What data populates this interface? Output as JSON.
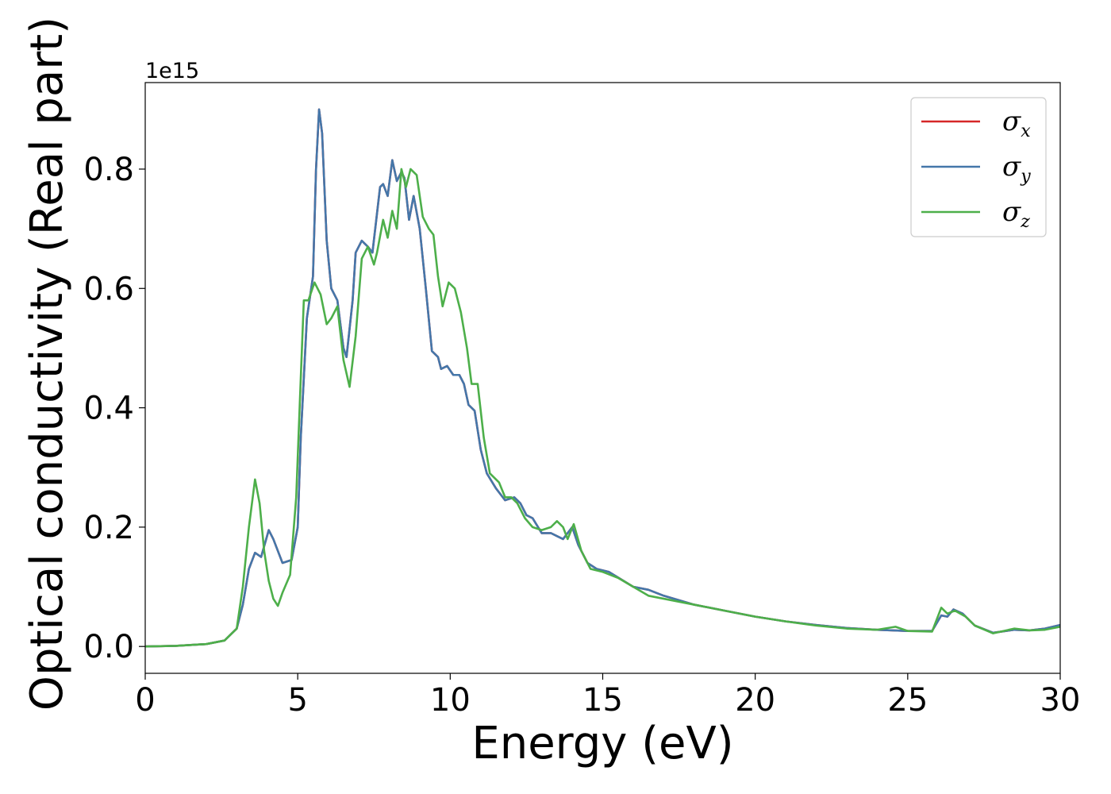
{
  "chart_data": {
    "type": "line",
    "xlabel": "Energy (eV)",
    "ylabel": "Optical conductivity (Real part)",
    "y_offset_label": "1e15",
    "xlim": [
      0,
      30
    ],
    "ylim": [
      -0.045,
      0.945
    ],
    "x_ticks": [
      0,
      5,
      10,
      15,
      20,
      25,
      30
    ],
    "x_tick_labels": [
      "0",
      "5",
      "10",
      "15",
      "20",
      "25",
      "30"
    ],
    "y_ticks": [
      0.0,
      0.2,
      0.4,
      0.6,
      0.8
    ],
    "y_tick_labels": [
      "0.0",
      "0.2",
      "0.4",
      "0.6",
      "0.8"
    ],
    "grid": false,
    "legend_position": "top-right",
    "series": [
      {
        "name": "σx",
        "legend_base": "σ",
        "legend_sub": "x",
        "color": "#d62728",
        "points": [
          [
            0,
            0
          ],
          [
            1,
            0.001
          ],
          [
            2,
            0.004
          ],
          [
            2.6,
            0.01
          ],
          [
            3,
            0.03
          ],
          [
            3.2,
            0.07
          ],
          [
            3.4,
            0.13
          ],
          [
            3.6,
            0.157
          ],
          [
            3.8,
            0.15
          ],
          [
            4.05,
            0.195
          ],
          [
            4.2,
            0.18
          ],
          [
            4.5,
            0.14
          ],
          [
            4.8,
            0.145
          ],
          [
            5.0,
            0.2
          ],
          [
            5.1,
            0.35
          ],
          [
            5.3,
            0.55
          ],
          [
            5.5,
            0.62
          ],
          [
            5.6,
            0.8
          ],
          [
            5.7,
            0.9
          ],
          [
            5.8,
            0.86
          ],
          [
            5.95,
            0.68
          ],
          [
            6.1,
            0.6
          ],
          [
            6.3,
            0.58
          ],
          [
            6.5,
            0.5
          ],
          [
            6.6,
            0.485
          ],
          [
            6.8,
            0.58
          ],
          [
            6.9,
            0.66
          ],
          [
            7.1,
            0.68
          ],
          [
            7.3,
            0.67
          ],
          [
            7.45,
            0.66
          ],
          [
            7.7,
            0.77
          ],
          [
            7.8,
            0.775
          ],
          [
            7.95,
            0.755
          ],
          [
            8.1,
            0.815
          ],
          [
            8.25,
            0.78
          ],
          [
            8.4,
            0.795
          ],
          [
            8.5,
            0.785
          ],
          [
            8.65,
            0.715
          ],
          [
            8.8,
            0.755
          ],
          [
            9.0,
            0.7
          ],
          [
            9.2,
            0.6
          ],
          [
            9.4,
            0.495
          ],
          [
            9.6,
            0.485
          ],
          [
            9.7,
            0.465
          ],
          [
            9.9,
            0.47
          ],
          [
            10.1,
            0.455
          ],
          [
            10.3,
            0.455
          ],
          [
            10.45,
            0.44
          ],
          [
            10.6,
            0.405
          ],
          [
            10.8,
            0.395
          ],
          [
            11.0,
            0.33
          ],
          [
            11.2,
            0.29
          ],
          [
            11.5,
            0.265
          ],
          [
            11.8,
            0.245
          ],
          [
            12.1,
            0.25
          ],
          [
            12.3,
            0.24
          ],
          [
            12.5,
            0.22
          ],
          [
            12.7,
            0.215
          ],
          [
            13.0,
            0.19
          ],
          [
            13.3,
            0.19
          ],
          [
            13.5,
            0.185
          ],
          [
            13.7,
            0.18
          ],
          [
            13.85,
            0.19
          ],
          [
            14.0,
            0.2
          ],
          [
            14.2,
            0.17
          ],
          [
            14.5,
            0.14
          ],
          [
            14.8,
            0.13
          ],
          [
            15.2,
            0.125
          ],
          [
            16,
            0.1
          ],
          [
            16.5,
            0.095
          ],
          [
            17,
            0.085
          ],
          [
            18,
            0.07
          ],
          [
            19,
            0.06
          ],
          [
            20,
            0.05
          ],
          [
            21,
            0.042
          ],
          [
            22,
            0.036
          ],
          [
            23,
            0.031
          ],
          [
            24,
            0.028
          ],
          [
            25,
            0.026
          ],
          [
            25.8,
            0.026
          ],
          [
            26.1,
            0.052
          ],
          [
            26.3,
            0.05
          ],
          [
            26.5,
            0.062
          ],
          [
            26.8,
            0.055
          ],
          [
            27.2,
            0.035
          ],
          [
            27.8,
            0.023
          ],
          [
            28.5,
            0.028
          ],
          [
            29,
            0.027
          ],
          [
            29.5,
            0.03
          ],
          [
            30,
            0.036
          ]
        ]
      },
      {
        "name": "σy",
        "legend_base": "σ",
        "legend_sub": "y",
        "color": "#4477aa",
        "points": [
          [
            0,
            0
          ],
          [
            1,
            0.001
          ],
          [
            2,
            0.004
          ],
          [
            2.6,
            0.01
          ],
          [
            3,
            0.03
          ],
          [
            3.2,
            0.07
          ],
          [
            3.4,
            0.13
          ],
          [
            3.6,
            0.157
          ],
          [
            3.8,
            0.15
          ],
          [
            4.05,
            0.195
          ],
          [
            4.2,
            0.18
          ],
          [
            4.5,
            0.14
          ],
          [
            4.8,
            0.145
          ],
          [
            5.0,
            0.2
          ],
          [
            5.1,
            0.35
          ],
          [
            5.3,
            0.55
          ],
          [
            5.5,
            0.62
          ],
          [
            5.6,
            0.8
          ],
          [
            5.7,
            0.9
          ],
          [
            5.8,
            0.86
          ],
          [
            5.95,
            0.68
          ],
          [
            6.1,
            0.6
          ],
          [
            6.3,
            0.58
          ],
          [
            6.5,
            0.5
          ],
          [
            6.6,
            0.485
          ],
          [
            6.8,
            0.58
          ],
          [
            6.9,
            0.66
          ],
          [
            7.1,
            0.68
          ],
          [
            7.3,
            0.67
          ],
          [
            7.45,
            0.66
          ],
          [
            7.7,
            0.77
          ],
          [
            7.8,
            0.775
          ],
          [
            7.95,
            0.755
          ],
          [
            8.1,
            0.815
          ],
          [
            8.25,
            0.78
          ],
          [
            8.4,
            0.795
          ],
          [
            8.5,
            0.785
          ],
          [
            8.65,
            0.715
          ],
          [
            8.8,
            0.755
          ],
          [
            9.0,
            0.7
          ],
          [
            9.2,
            0.6
          ],
          [
            9.4,
            0.495
          ],
          [
            9.6,
            0.485
          ],
          [
            9.7,
            0.465
          ],
          [
            9.9,
            0.47
          ],
          [
            10.1,
            0.455
          ],
          [
            10.3,
            0.455
          ],
          [
            10.45,
            0.44
          ],
          [
            10.6,
            0.405
          ],
          [
            10.8,
            0.395
          ],
          [
            11.0,
            0.33
          ],
          [
            11.2,
            0.29
          ],
          [
            11.5,
            0.265
          ],
          [
            11.8,
            0.245
          ],
          [
            12.1,
            0.25
          ],
          [
            12.3,
            0.24
          ],
          [
            12.5,
            0.22
          ],
          [
            12.7,
            0.215
          ],
          [
            13.0,
            0.19
          ],
          [
            13.3,
            0.19
          ],
          [
            13.5,
            0.185
          ],
          [
            13.7,
            0.18
          ],
          [
            13.85,
            0.19
          ],
          [
            14.0,
            0.2
          ],
          [
            14.2,
            0.17
          ],
          [
            14.5,
            0.14
          ],
          [
            14.8,
            0.13
          ],
          [
            15.2,
            0.125
          ],
          [
            16,
            0.1
          ],
          [
            16.5,
            0.095
          ],
          [
            17,
            0.085
          ],
          [
            18,
            0.07
          ],
          [
            19,
            0.06
          ],
          [
            20,
            0.05
          ],
          [
            21,
            0.042
          ],
          [
            22,
            0.036
          ],
          [
            23,
            0.031
          ],
          [
            24,
            0.028
          ],
          [
            25,
            0.026
          ],
          [
            25.8,
            0.026
          ],
          [
            26.1,
            0.052
          ],
          [
            26.3,
            0.05
          ],
          [
            26.5,
            0.062
          ],
          [
            26.8,
            0.055
          ],
          [
            27.2,
            0.035
          ],
          [
            27.8,
            0.023
          ],
          [
            28.5,
            0.028
          ],
          [
            29,
            0.027
          ],
          [
            29.5,
            0.03
          ],
          [
            30,
            0.036
          ]
        ]
      },
      {
        "name": "σz",
        "legend_base": "σ",
        "legend_sub": "z",
        "color": "#4daf4a",
        "points": [
          [
            0,
            0
          ],
          [
            1,
            0.001
          ],
          [
            2,
            0.004
          ],
          [
            2.6,
            0.01
          ],
          [
            3,
            0.03
          ],
          [
            3.2,
            0.1
          ],
          [
            3.4,
            0.2
          ],
          [
            3.6,
            0.28
          ],
          [
            3.75,
            0.24
          ],
          [
            3.9,
            0.16
          ],
          [
            4.05,
            0.11
          ],
          [
            4.2,
            0.08
          ],
          [
            4.35,
            0.068
          ],
          [
            4.5,
            0.09
          ],
          [
            4.75,
            0.12
          ],
          [
            4.95,
            0.25
          ],
          [
            5.1,
            0.45
          ],
          [
            5.2,
            0.58
          ],
          [
            5.35,
            0.58
          ],
          [
            5.55,
            0.61
          ],
          [
            5.75,
            0.59
          ],
          [
            5.95,
            0.54
          ],
          [
            6.1,
            0.55
          ],
          [
            6.3,
            0.57
          ],
          [
            6.5,
            0.48
          ],
          [
            6.7,
            0.435
          ],
          [
            6.9,
            0.52
          ],
          [
            7.1,
            0.65
          ],
          [
            7.3,
            0.67
          ],
          [
            7.5,
            0.64
          ],
          [
            7.6,
            0.66
          ],
          [
            7.8,
            0.715
          ],
          [
            7.95,
            0.685
          ],
          [
            8.1,
            0.73
          ],
          [
            8.25,
            0.7
          ],
          [
            8.4,
            0.8
          ],
          [
            8.55,
            0.77
          ],
          [
            8.7,
            0.8
          ],
          [
            8.9,
            0.79
          ],
          [
            9.1,
            0.72
          ],
          [
            9.3,
            0.7
          ],
          [
            9.45,
            0.69
          ],
          [
            9.6,
            0.62
          ],
          [
            9.75,
            0.57
          ],
          [
            9.95,
            0.61
          ],
          [
            10.15,
            0.6
          ],
          [
            10.35,
            0.56
          ],
          [
            10.55,
            0.5
          ],
          [
            10.7,
            0.44
          ],
          [
            10.9,
            0.44
          ],
          [
            11.1,
            0.35
          ],
          [
            11.3,
            0.29
          ],
          [
            11.6,
            0.275
          ],
          [
            11.8,
            0.25
          ],
          [
            12.0,
            0.25
          ],
          [
            12.2,
            0.24
          ],
          [
            12.45,
            0.215
          ],
          [
            12.7,
            0.2
          ],
          [
            13.0,
            0.195
          ],
          [
            13.3,
            0.2
          ],
          [
            13.5,
            0.21
          ],
          [
            13.7,
            0.2
          ],
          [
            13.85,
            0.18
          ],
          [
            14.05,
            0.205
          ],
          [
            14.3,
            0.16
          ],
          [
            14.6,
            0.13
          ],
          [
            15.0,
            0.125
          ],
          [
            15.5,
            0.115
          ],
          [
            16.0,
            0.1
          ],
          [
            16.5,
            0.085
          ],
          [
            17,
            0.08
          ],
          [
            18,
            0.07
          ],
          [
            19,
            0.06
          ],
          [
            20,
            0.05
          ],
          [
            21,
            0.042
          ],
          [
            22,
            0.035
          ],
          [
            23,
            0.03
          ],
          [
            24,
            0.028
          ],
          [
            24.6,
            0.033
          ],
          [
            25,
            0.026
          ],
          [
            25.8,
            0.025
          ],
          [
            26.1,
            0.065
          ],
          [
            26.3,
            0.055
          ],
          [
            26.55,
            0.06
          ],
          [
            26.9,
            0.05
          ],
          [
            27.2,
            0.035
          ],
          [
            27.8,
            0.022
          ],
          [
            28.5,
            0.03
          ],
          [
            29,
            0.027
          ],
          [
            29.5,
            0.028
          ],
          [
            30,
            0.033
          ]
        ]
      }
    ]
  }
}
